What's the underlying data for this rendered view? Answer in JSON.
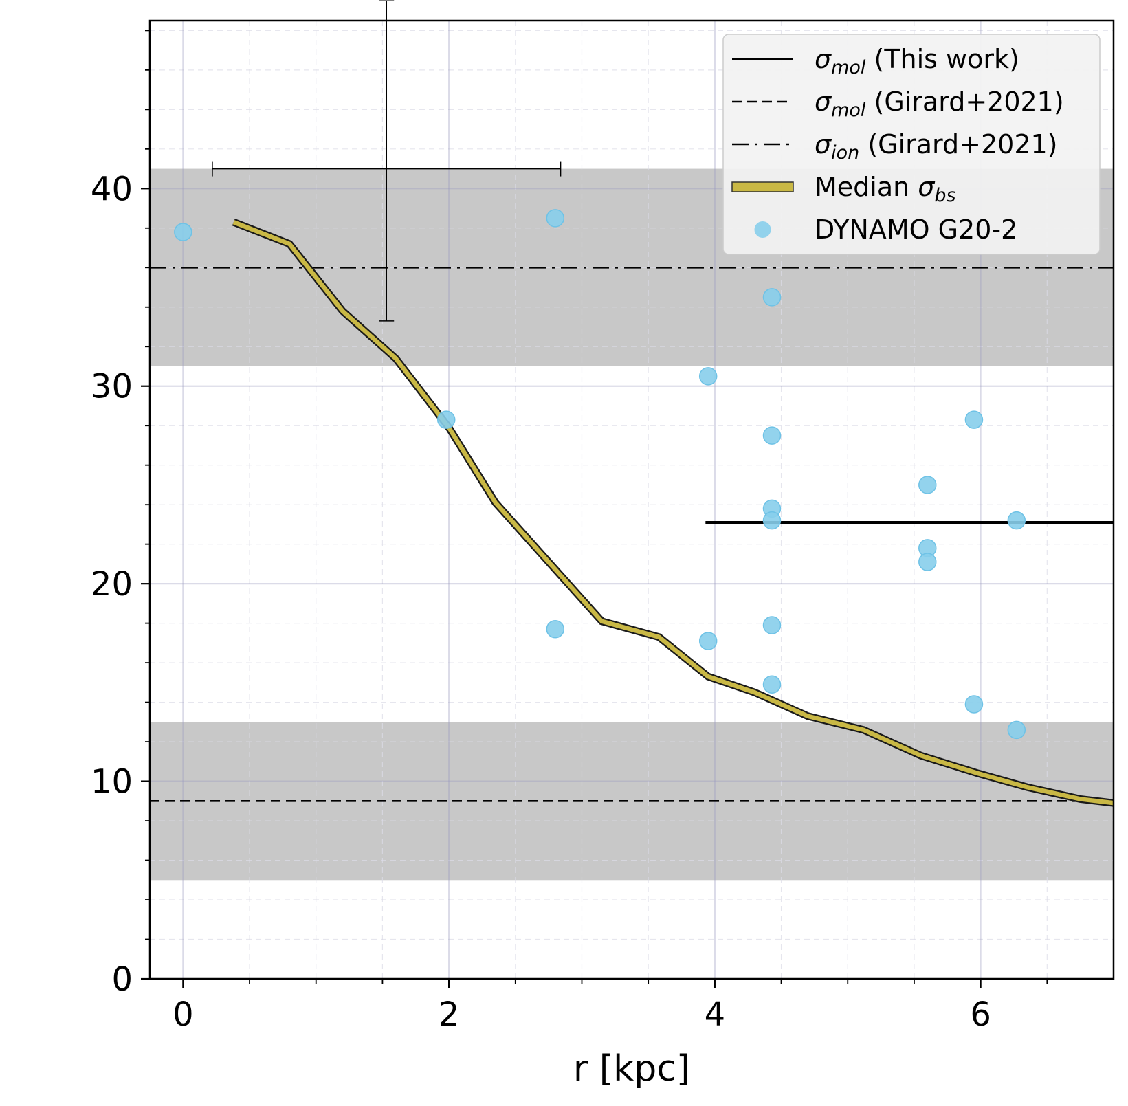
{
  "chart_data": {
    "type": "scatter",
    "title": "",
    "xlabel": "r [kpc]",
    "ylabel": "",
    "xlim": [
      -0.25,
      7.0
    ],
    "ylim": [
      0,
      48.5
    ],
    "xticks": [
      0,
      2,
      4,
      6
    ],
    "yticks": [
      0,
      10,
      20,
      30,
      40
    ],
    "grid": true,
    "legend_position": "top-right",
    "bands": [
      {
        "name": "ion-band",
        "y0": 31,
        "y1": 41,
        "color": "#c8c8c8"
      },
      {
        "name": "mol-band",
        "y0": 5,
        "y1": 13,
        "color": "#c8c8c8"
      }
    ],
    "hlines": [
      {
        "name": "sigma-mol-girard",
        "y": 9,
        "style": "dashed",
        "color": "#000000"
      },
      {
        "name": "sigma-ion-girard",
        "y": 36,
        "style": "dashdot",
        "color": "#000000"
      },
      {
        "name": "sigma-mol-this-work",
        "y": 23.1,
        "x_start": 3.93,
        "style": "solid",
        "color": "#000000"
      }
    ],
    "errorbar": {
      "x": 1.53,
      "y": 41,
      "xerr_low": 1.31,
      "xerr_high": 1.31,
      "yerr_low": 7.7,
      "yerr_high": 8.5
    },
    "series": [
      {
        "name": "Median σbs",
        "type": "line",
        "color": "#c9b845",
        "x": [
          0.38,
          0.8,
          1.2,
          1.6,
          2.0,
          2.35,
          2.75,
          3.15,
          3.58,
          3.95,
          4.3,
          4.7,
          5.12,
          5.55,
          5.98,
          6.35,
          6.75,
          7.0
        ],
        "y": [
          38.3,
          37.2,
          33.8,
          31.4,
          27.9,
          24.1,
          21.1,
          18.1,
          17.3,
          15.3,
          14.5,
          13.3,
          12.6,
          11.3,
          10.4,
          9.7,
          9.1,
          8.9
        ]
      },
      {
        "name": "DYNAMO G20-2",
        "type": "scatter",
        "color": "#87ceeb",
        "x": [
          0.0,
          1.98,
          2.8,
          2.8,
          3.95,
          3.95,
          4.43,
          4.43,
          4.43,
          4.43,
          4.43,
          4.43,
          5.6,
          5.6,
          5.6,
          5.95,
          5.95,
          6.27,
          6.27
        ],
        "y": [
          37.8,
          28.3,
          38.5,
          17.7,
          30.5,
          17.1,
          34.5,
          27.5,
          23.8,
          23.2,
          17.9,
          14.9,
          25.0,
          21.8,
          21.1,
          28.3,
          13.9,
          23.2,
          12.6
        ]
      }
    ],
    "legend": {
      "entries": [
        {
          "key": "sigma-mol-this-work",
          "symbol": "σ",
          "sub": "mol",
          "text": "(This work)",
          "style": "solid"
        },
        {
          "key": "sigma-mol-girard",
          "symbol": "σ",
          "sub": "mol",
          "text": "(Girard+2021)",
          "style": "dashed"
        },
        {
          "key": "sigma-ion-girard",
          "symbol": "σ",
          "sub": "ion",
          "text": "(Girard+2021)",
          "style": "dashdot"
        },
        {
          "key": "median-sigma-bs",
          "prefix": "Median",
          "symbol": "σ",
          "sub": "bs",
          "text": "",
          "style": "median"
        },
        {
          "key": "dynamo-g20-2",
          "symbol": "",
          "sub": "",
          "text": "DYNAMO G20-2",
          "style": "marker"
        }
      ]
    }
  }
}
